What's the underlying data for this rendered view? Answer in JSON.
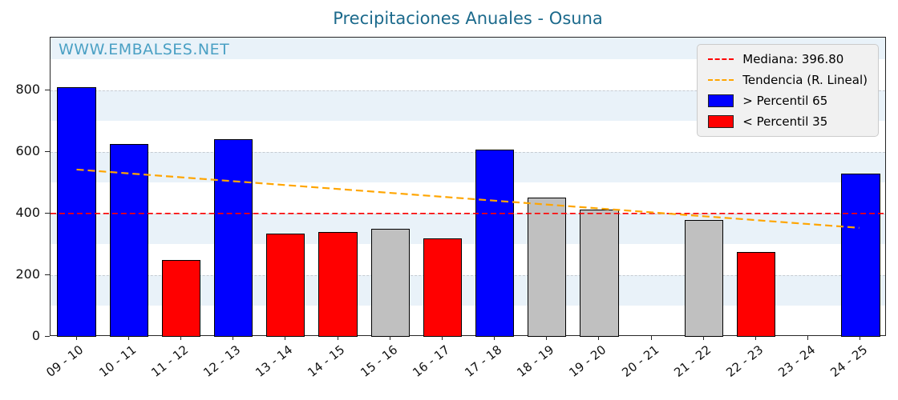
{
  "title": "Precipitaciones Anuales - Osuna",
  "watermark": "WWW.EMBALSES.NET",
  "legend": {
    "median_label": "Mediana: 396.80",
    "trend_label": "Tendencia (R. Lineal)",
    "above_label": "> Percentil 65",
    "below_label": "< Percentil 35"
  },
  "colors": {
    "above": "#0000ff",
    "below": "#ff0000",
    "mid": "#c0c0c0",
    "median_line": "#ff0000",
    "trend_line": "#ffa500",
    "title": "#1c6a8c",
    "watermark": "#4aa0c4"
  },
  "chart_data": {
    "type": "bar",
    "title": "Precipitaciones Anuales - Osuna",
    "categories": [
      "09 - 10",
      "10 - 11",
      "11 - 12",
      "12 - 13",
      "13 - 14",
      "14 - 15",
      "15 - 16",
      "16 - 17",
      "17 - 18",
      "18 - 19",
      "19 - 20",
      "20 - 21",
      "21 - 22",
      "22 - 23",
      "23 - 24",
      "24 - 25"
    ],
    "values": [
      810,
      625,
      250,
      640,
      335,
      340,
      350,
      318,
      608,
      450,
      413,
      null,
      378,
      276,
      null,
      528
    ],
    "bar_colors": [
      "above",
      "above",
      "below",
      "above",
      "below",
      "below",
      "mid",
      "below",
      "above",
      "mid",
      "mid",
      null,
      "mid",
      "below",
      null,
      "above"
    ],
    "median": 396.8,
    "trend": {
      "start": 540,
      "end": 350
    },
    "ylim": [
      0,
      970
    ],
    "yticks": [
      0,
      200,
      400,
      600,
      800
    ],
    "legend_position": "upper right",
    "grid": "dashed horizontal",
    "xlabel": "",
    "ylabel": ""
  }
}
